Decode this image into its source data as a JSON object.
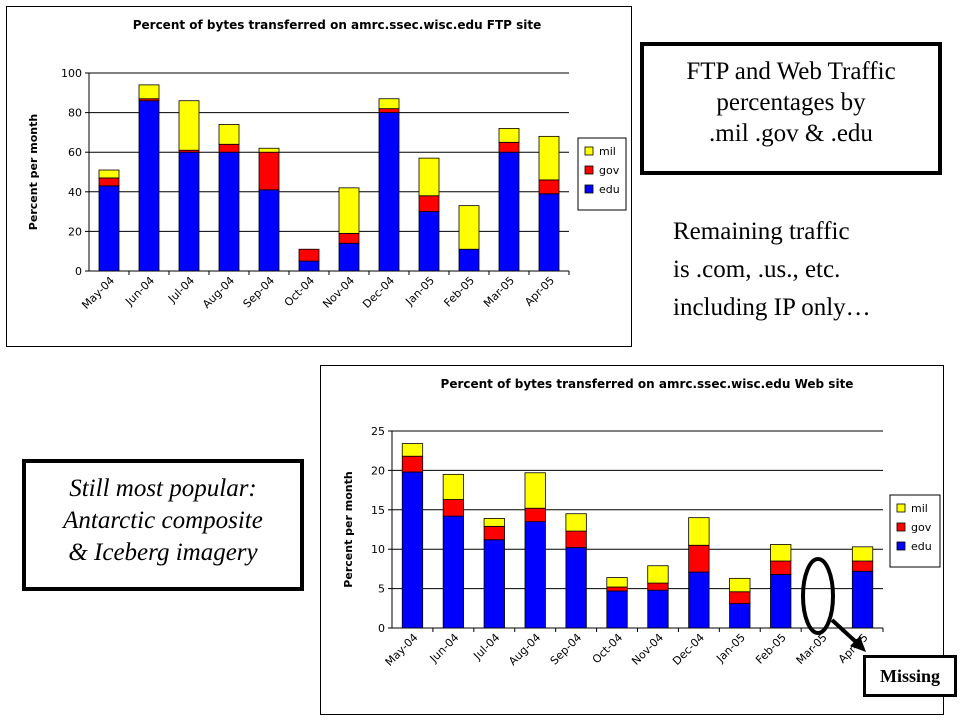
{
  "callouts": {
    "ftp_web": [
      "FTP and Web Traffic",
      "percentages by",
      ".mil .gov & .edu"
    ],
    "remaining": [
      "Remaining traffic",
      "is .com, .us., etc.",
      "including IP only…"
    ],
    "popular": [
      "Still most popular:",
      "Antarctic composite",
      "& Iceberg imagery"
    ],
    "missing": "Missing"
  },
  "colors": {
    "edu": "#0000ff",
    "gov": "#ff0000",
    "mil": "#ffff00",
    "plot_bg": "#ffffff",
    "grid": "#000000"
  },
  "chart_data": [
    {
      "id": "ftp",
      "type": "bar",
      "stacked": true,
      "title": "Percent of bytes transferred on amrc.ssec.wisc.edu FTP site",
      "xlabel": "",
      "ylabel": "Percent per month",
      "ylim": [
        0,
        100
      ],
      "yticks": [
        0,
        20,
        40,
        60,
        80,
        100
      ],
      "grid": true,
      "legend": "right",
      "categories": [
        "May-04",
        "Jun-04",
        "Jul-04",
        "Aug-04",
        "Sep-04",
        "Oct-04",
        "Nov-04",
        "Dec-04",
        "Jan-05",
        "Feb-05",
        "Mar-05",
        "Apr-05"
      ],
      "series": [
        {
          "name": "edu",
          "color": "#0000ff",
          "values": [
            43,
            86,
            60,
            60,
            41,
            5,
            14,
            80,
            30,
            11,
            60,
            39
          ]
        },
        {
          "name": "gov",
          "color": "#ff0000",
          "values": [
            4,
            1,
            1,
            4,
            19,
            6,
            5,
            2,
            8,
            0,
            5,
            7
          ]
        },
        {
          "name": "mil",
          "color": "#ffff00",
          "values": [
            4,
            7,
            25,
            10,
            2,
            0,
            23,
            5,
            19,
            22,
            7,
            22
          ]
        }
      ],
      "legend_order": [
        "mil",
        "gov",
        "edu"
      ]
    },
    {
      "id": "web",
      "type": "bar",
      "stacked": true,
      "title": "Percent of bytes transferred on amrc.ssec.wisc.edu Web site",
      "xlabel": "",
      "ylabel": "Percent per month",
      "ylim": [
        0,
        25
      ],
      "yticks": [
        0,
        5,
        10,
        15,
        20,
        25
      ],
      "grid": true,
      "legend": "right",
      "categories": [
        "May-04",
        "Jun-04",
        "Jul-04",
        "Aug-04",
        "Sep-04",
        "Oct-04",
        "Nov-04",
        "Dec-04",
        "Jan-05",
        "Feb-05",
        "Mar-05",
        "Apr-05"
      ],
      "series": [
        {
          "name": "edu",
          "color": "#0000ff",
          "values": [
            19.8,
            14.2,
            11.2,
            13.5,
            10.2,
            4.7,
            4.8,
            7.1,
            3.1,
            6.8,
            null,
            7.2
          ]
        },
        {
          "name": "gov",
          "color": "#ff0000",
          "values": [
            2.0,
            2.1,
            1.7,
            1.7,
            2.1,
            0.5,
            0.9,
            3.4,
            1.5,
            1.7,
            null,
            1.3
          ]
        },
        {
          "name": "mil",
          "color": "#ffff00",
          "values": [
            1.6,
            3.2,
            1.0,
            4.5,
            2.2,
            1.2,
            2.2,
            3.5,
            1.7,
            2.1,
            null,
            1.8
          ]
        }
      ],
      "legend_order": [
        "mil",
        "gov",
        "edu"
      ]
    }
  ]
}
